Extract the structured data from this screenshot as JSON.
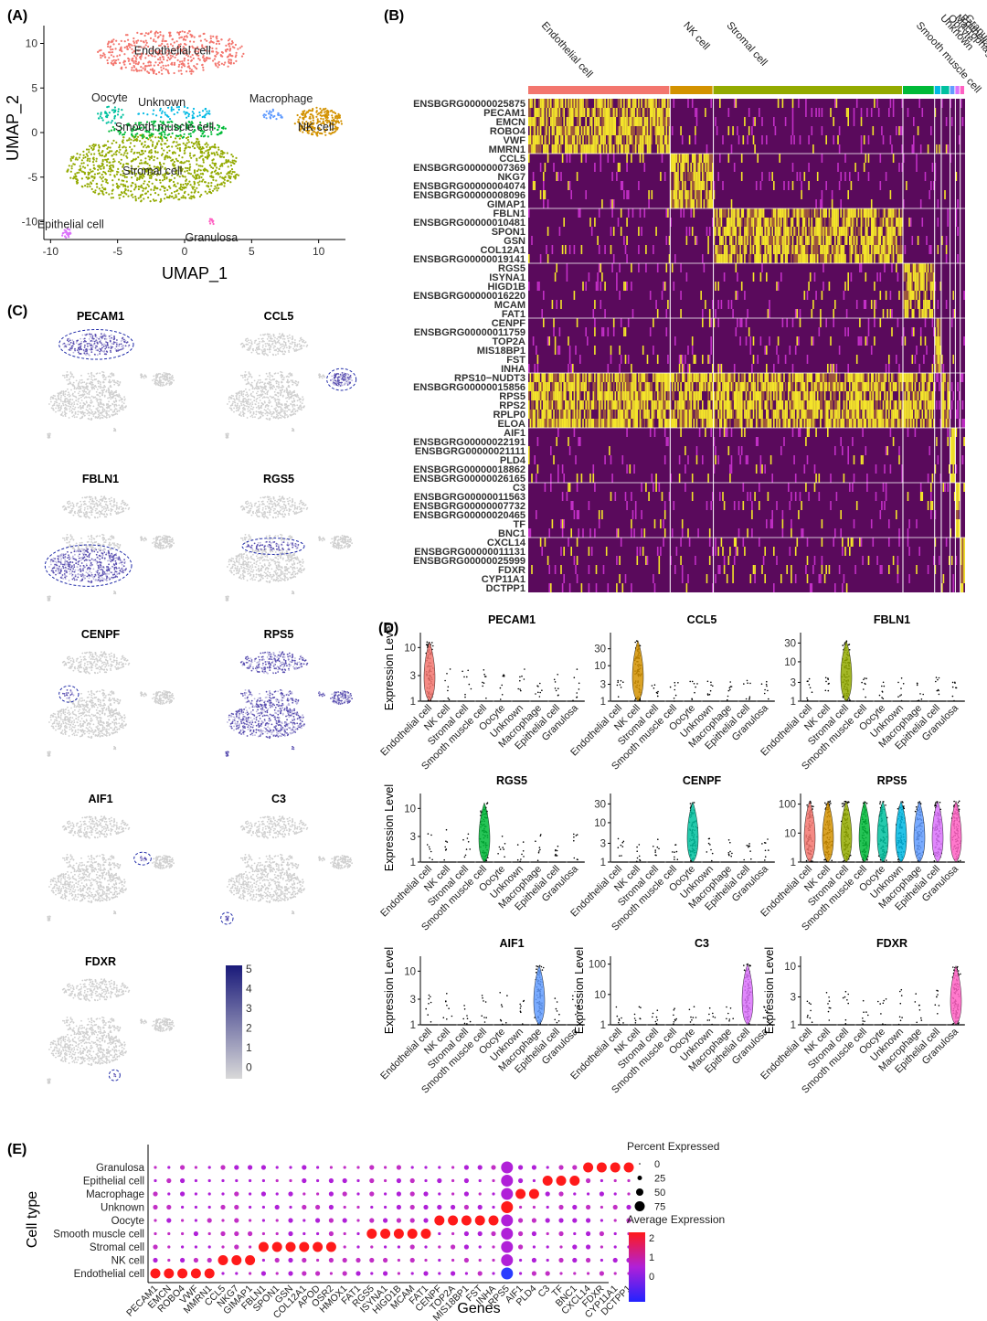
{
  "figure": {
    "panel_labels": [
      "(A)",
      "(B)",
      "(C)",
      "(D)",
      "(E)"
    ]
  },
  "cell_types": [
    "Endothelial cell",
    "NK cell",
    "Stromal cell",
    "Smooth muscle cell",
    "Oocyte",
    "Unknown",
    "Macrophage",
    "Epithelial cell",
    "Granulosa"
  ],
  "cell_type_colors": {
    "Endothelial cell": "#f3766e",
    "NK cell": "#d39200",
    "Stromal cell": "#93aa00",
    "Smooth muscle cell": "#00ba38",
    "Oocyte": "#00c19f",
    "Unknown": "#00b9e3",
    "Macrophage": "#619cff",
    "Epithelial cell": "#db72fb",
    "Granulosa": "#ff61c3"
  },
  "umap": {
    "xlabel": "UMAP_1",
    "ylabel": "UMAP_2",
    "xticks": [
      "-10",
      "-5",
      "0",
      "5",
      "10"
    ],
    "yticks": [
      "10",
      "5",
      "0",
      "-5",
      "-10"
    ],
    "xlim": [
      -10.5,
      12
    ],
    "ylim": [
      -12,
      12
    ],
    "clusters": [
      {
        "label": "Endothelial cell",
        "cx": -1.0,
        "cy": 9.0,
        "rx": 5.5,
        "ry": 2.5,
        "n": 500
      },
      {
        "label": "Stromal cell",
        "cx": -2.3,
        "cy": -4.0,
        "rx": 6.5,
        "ry": 3.8,
        "n": 1000
      },
      {
        "label": "Smooth muscle cell",
        "cx": -1.2,
        "cy": 0.3,
        "rx": 4.5,
        "ry": 1.0,
        "n": 180
      },
      {
        "label": "Oocyte",
        "cx": -5.5,
        "cy": 2.0,
        "rx": 1.0,
        "ry": 1.0,
        "n": 40
      },
      {
        "label": "Unknown",
        "cx": -0.5,
        "cy": 2.2,
        "rx": 3.0,
        "ry": 0.7,
        "n": 60
      },
      {
        "label": "Macrophage",
        "cx": 6.6,
        "cy": 2.0,
        "rx": 0.8,
        "ry": 0.6,
        "n": 30
      },
      {
        "label": "NK cell",
        "cx": 10.0,
        "cy": 1.2,
        "rx": 1.8,
        "ry": 1.6,
        "n": 220
      },
      {
        "label": "Epithelial cell",
        "cx": -8.8,
        "cy": -11.3,
        "rx": 0.4,
        "ry": 0.5,
        "n": 25
      },
      {
        "label": "Granulosa",
        "cx": 2.0,
        "cy": -10.0,
        "rx": 0.3,
        "ry": 0.4,
        "n": 12
      }
    ],
    "labels": [
      {
        "text": "Endothelial cell",
        "x": -0.9,
        "y": 9.2
      },
      {
        "text": "Oocyte",
        "x": -5.6,
        "y": 3.9
      },
      {
        "text": "Unknown",
        "x": -1.7,
        "y": 3.4
      },
      {
        "text": "Macrophage",
        "x": 7.2,
        "y": 3.8
      },
      {
        "text": "Smooth muscle cell",
        "x": -1.5,
        "y": 0.6
      },
      {
        "text": "NK cell",
        "x": 9.8,
        "y": 0.6
      },
      {
        "text": "Stromal cell",
        "x": -2.4,
        "y": -4.3
      },
      {
        "text": "Epithelial cell",
        "x": -8.5,
        "y": -10.3
      },
      {
        "text": "Granulosa",
        "x": 2.0,
        "y": -11.8
      }
    ]
  },
  "heatmap": {
    "genes": [
      "ENSBGRG00000025875",
      "PECAM1",
      "EMCN",
      "ROBO4",
      "VWF",
      "MMRN1",
      "CCL5",
      "ENSBGRG00000007369",
      "NKG7",
      "ENSBGRG00000004074",
      "ENSBGRG00000008096",
      "GIMAP1",
      "FBLN1",
      "ENSBGRG00000010481",
      "SPON1",
      "GSN",
      "COL12A1",
      "ENSBGRG00000019141",
      "RGS5",
      "ISYNA1",
      "HIGD1B",
      "ENSBGRG00000016220",
      "MCAM",
      "FAT1",
      "CENPF",
      "ENSBGRG00000011759",
      "TOP2A",
      "MIS18BP1",
      "FST",
      "INHA",
      "RPS10−NUDT3",
      "ENSBGRG00000015856",
      "RPS5",
      "RPS2",
      "RPLP0",
      "ELOA",
      "AIF1",
      "ENSBGRG00000022191",
      "ENSBGRG00000021111",
      "PLD4",
      "ENSBGRG00000018862",
      "ENSBGRG00000026165",
      "C3",
      "ENSBGRG00000011563",
      "ENSBGRG00000007732",
      "ENSBGRG00000020465",
      "TF",
      "BNC1",
      "CXCL14",
      "ENSBGRG00000011131",
      "ENSBGRG00000025999",
      "FDXR",
      "CYP11A1",
      "DCTPP1"
    ],
    "gene_groups": [
      6,
      6,
      6,
      6,
      6,
      6,
      6,
      6,
      6
    ],
    "group_fractions": [
      0.322,
      0.098,
      0.43,
      0.072,
      0.015,
      0.02,
      0.012,
      0.011,
      0.011
    ],
    "header_labels": [
      "Endothelial cell",
      "NK cell",
      "Stromal cell",
      "Smooth muscle cell",
      "Unknown",
      "Oocyte",
      "Macrophage",
      "Epithelial cell",
      "Granulosa"
    ],
    "colors": {
      "low": "#5a0a5c",
      "mid": "#c22fc6",
      "high": "#f4e52a"
    }
  },
  "feature_plots": {
    "genes": [
      "PECAM1",
      "CCL5",
      "FBLN1",
      "RGS5",
      "CENPF",
      "RPS5",
      "AIF1",
      "C3",
      "FDXR"
    ],
    "legend_ticks": [
      "5",
      "4",
      "3",
      "2",
      "1",
      "0"
    ]
  },
  "violin_plots": [
    {
      "gene": "PECAM1",
      "ylabel": "Expression Level",
      "yticks": [
        "1",
        "3",
        "10"
      ],
      "ymax": 15,
      "level": [
        1,
        0,
        0,
        0,
        0,
        0,
        0,
        0,
        0
      ]
    },
    {
      "gene": "CCL5",
      "ylabel": "",
      "yticks": [
        "1",
        "3",
        "10",
        "30"
      ],
      "ymax": 60,
      "level": [
        0,
        1,
        0,
        0,
        0,
        0,
        0,
        0,
        0
      ]
    },
    {
      "gene": "FBLN1",
      "ylabel": "",
      "yticks": [
        "1",
        "3",
        "10",
        "30"
      ],
      "ymax": 40,
      "level": [
        0,
        0,
        1,
        0,
        0,
        0,
        0,
        0,
        0
      ]
    },
    {
      "gene": "RGS5",
      "ylabel": "Expression Level",
      "yticks": [
        "1",
        "3",
        "10"
      ],
      "ymax": 15,
      "level": [
        0,
        0,
        0,
        1,
        0,
        0,
        0,
        0,
        0
      ]
    },
    {
      "gene": "CENPF",
      "ylabel": "",
      "yticks": [
        "1",
        "3",
        "10",
        "30"
      ],
      "ymax": 40,
      "level": [
        0,
        0,
        0,
        0,
        1,
        0,
        0,
        0,
        0
      ]
    },
    {
      "gene": "RPS5",
      "ylabel": "",
      "yticks": [
        "1",
        "10",
        "100"
      ],
      "ymax": 150,
      "level": [
        1,
        1,
        1,
        1,
        1,
        1,
        1,
        1,
        1
      ]
    },
    {
      "gene": "AIF1",
      "ylabel": "Expression Level",
      "yticks": [
        "1",
        "3",
        "10"
      ],
      "ymax": 15,
      "level": [
        0,
        0,
        0,
        0,
        0,
        0,
        1,
        0,
        0
      ]
    },
    {
      "gene": "C3",
      "ylabel": "Expression Level",
      "yticks": [
        "1",
        "10",
        "100"
      ],
      "ymax": 120,
      "level": [
        0,
        0,
        0,
        0,
        0,
        0,
        0,
        1,
        0
      ]
    },
    {
      "gene": "FDXR",
      "ylabel": "Expression Level",
      "yticks": [
        "1",
        "3",
        "10"
      ],
      "ymax": 12,
      "level": [
        0,
        0,
        0,
        0,
        0,
        0,
        0,
        0,
        1
      ]
    }
  ],
  "chart_data": {
    "type": "scatter",
    "title": "",
    "xlabel": "Genes",
    "ylabel": "Cell type",
    "categories": [
      "PECAM1",
      "EMCN",
      "ROBO4",
      "VWF",
      "MMRN1",
      "CCL5",
      "NKG7",
      "GIMAP1",
      "FBLN1",
      "SPON1",
      "GSN",
      "COL12A1",
      "APOD",
      "OSR2",
      "HMOX1",
      "FAT1",
      "RGS5",
      "ISYNA1",
      "HIGD1B",
      "MCAM",
      "FAT1",
      "CENPF",
      "TOP2A",
      "MIS18BP1",
      "FST",
      "INHA",
      "RPS5",
      "AIF1",
      "PLD4",
      "C3",
      "TF",
      "BNC1",
      "CXCL14",
      "FDXR",
      "CYP11A1",
      "DCTPP1"
    ],
    "rows": [
      "Endothelial cell",
      "NK cell",
      "Stromal cell",
      "Smooth muscle cell",
      "Oocyte",
      "Unknown",
      "Macrophage",
      "Epithelial cell",
      "Granulosa"
    ],
    "marker_gene_ranges": [
      [
        0,
        4
      ],
      [
        5,
        7
      ],
      [
        8,
        13
      ],
      [
        16,
        20
      ],
      [
        21,
        25
      ],
      [
        26,
        26
      ],
      [
        27,
        28
      ],
      [
        29,
        31
      ],
      [
        32,
        35
      ]
    ],
    "legend_percent": {
      "title": "Percent Expressed",
      "values": [
        0,
        25,
        50,
        75
      ]
    },
    "legend_expression": {
      "title": "Average Expression",
      "ticks": [
        "2",
        "1",
        "0"
      ],
      "colors": [
        "#ff1a1a",
        "#b020d8",
        "#2222ff"
      ]
    }
  }
}
